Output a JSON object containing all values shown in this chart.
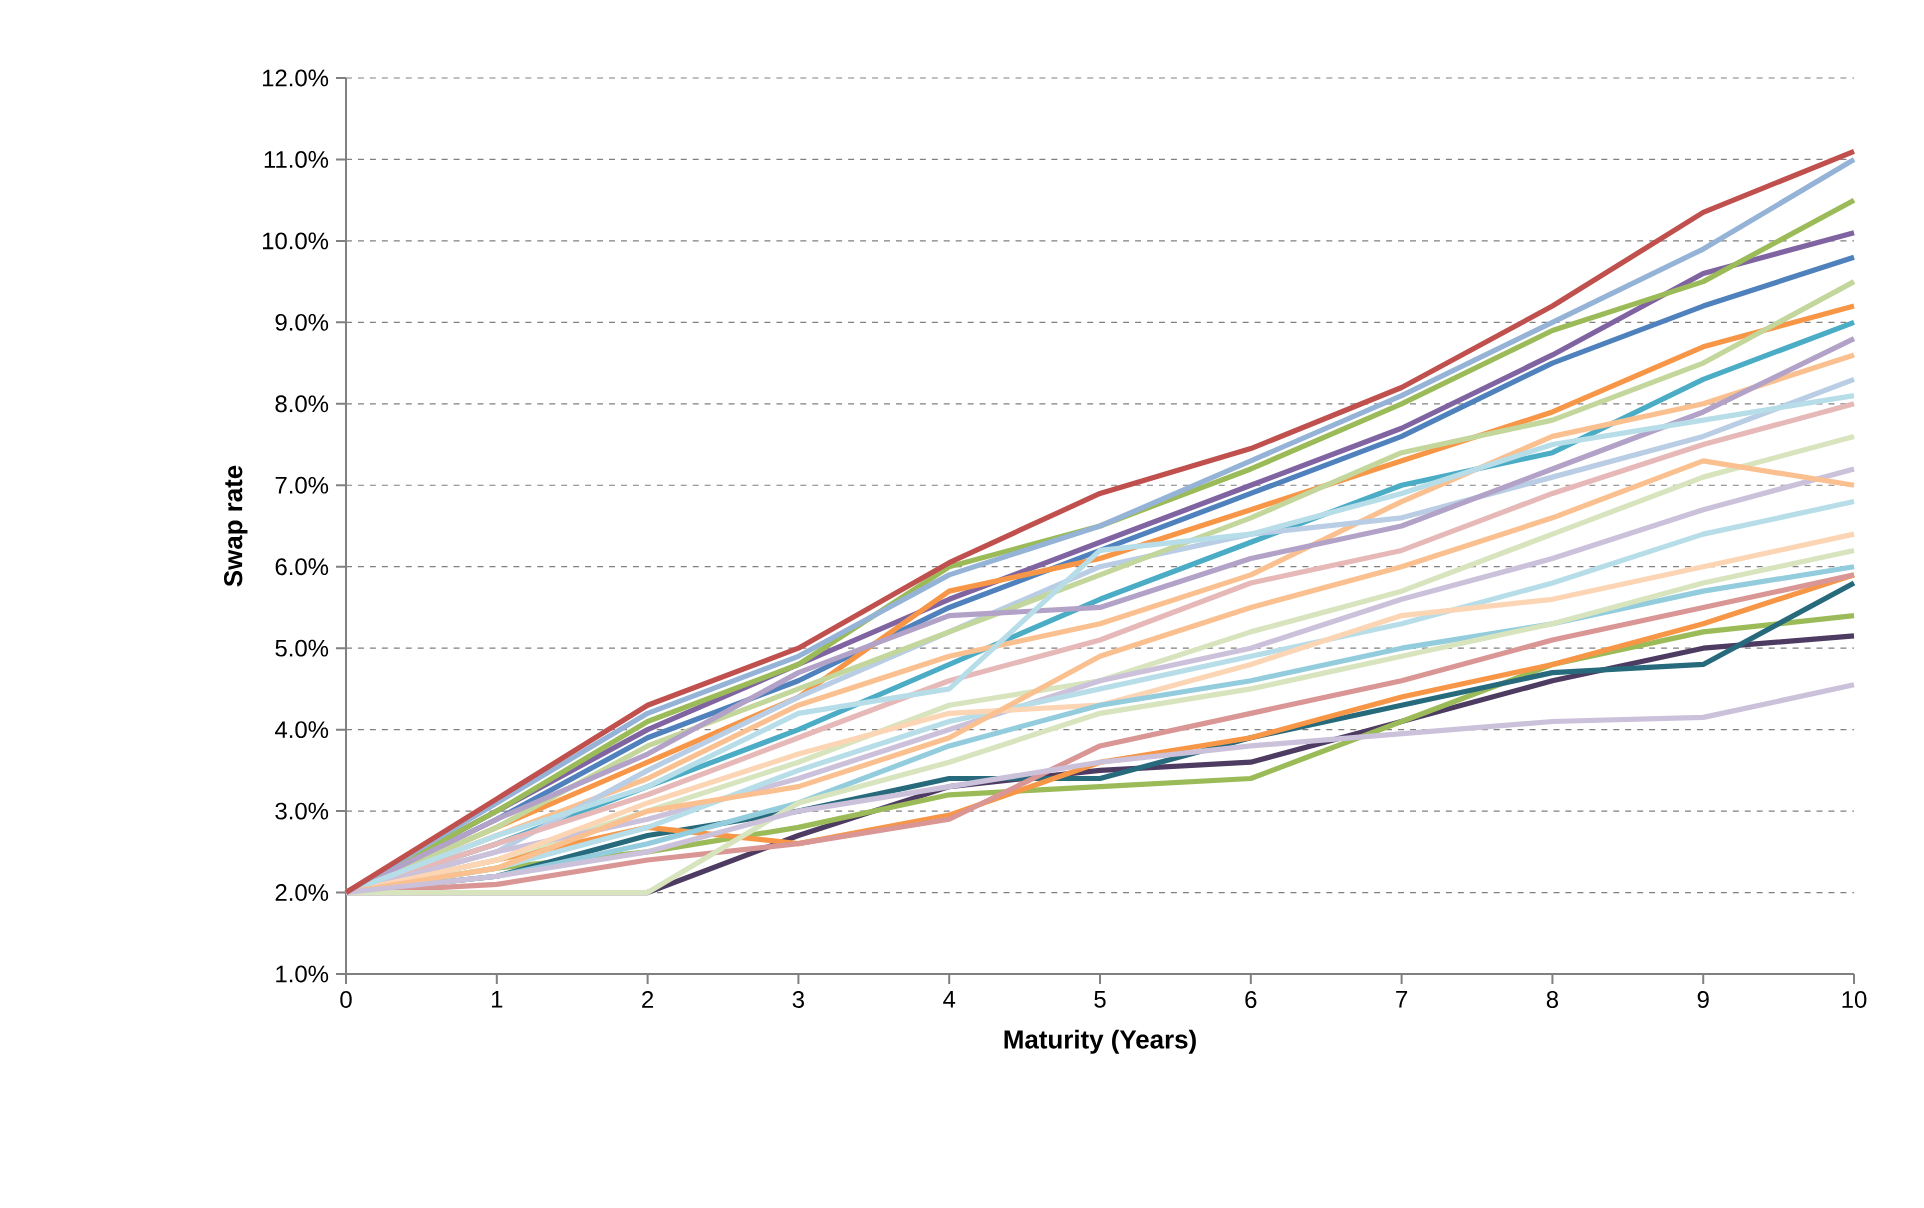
{
  "chart_data": {
    "type": "line",
    "xlabel": "Maturity (Years)",
    "ylabel": "Swap rate",
    "grid": "y",
    "marker": "none",
    "line_style": "solid",
    "x": [
      0,
      1,
      2,
      3,
      4,
      5,
      6,
      7,
      8,
      9,
      10
    ],
    "xlim": [
      0,
      10
    ],
    "xticks": [
      0,
      1,
      2,
      3,
      4,
      5,
      6,
      7,
      8,
      9,
      10
    ],
    "ylim": [
      1,
      12
    ],
    "yticks": [
      {
        "value": 1,
        "label": "1.0%"
      },
      {
        "value": 2,
        "label": "2.0%"
      },
      {
        "value": 3,
        "label": "3.0%"
      },
      {
        "value": 4,
        "label": "4.0%"
      },
      {
        "value": 5,
        "label": "5.0%"
      },
      {
        "value": 6,
        "label": "6.0%"
      },
      {
        "value": 7,
        "label": "7.0%"
      },
      {
        "value": 8,
        "label": "8.0%"
      },
      {
        "value": 9,
        "label": "9.0%"
      },
      {
        "value": 10,
        "label": "10.0%"
      },
      {
        "value": 11,
        "label": "11.0%"
      },
      {
        "value": 12,
        "label": "12.0%"
      }
    ],
    "series": [
      {
        "color": "#4d3b62",
        "values": [
          2,
          null,
          2.0,
          2.7,
          3.3,
          3.5,
          3.6,
          4.1,
          4.6,
          5.0,
          5.15
        ]
      },
      {
        "color": "#9bbb59",
        "values": [
          2,
          2.3,
          2.5,
          2.8,
          3.2,
          3.3,
          3.4,
          4.1,
          4.8,
          5.2,
          5.4
        ]
      },
      {
        "color": "#276a7c",
        "values": [
          2,
          2.2,
          2.7,
          3.0,
          3.4,
          3.4,
          3.9,
          4.3,
          4.7,
          4.8,
          5.8
        ]
      },
      {
        "color": "#f79646",
        "values": [
          2,
          2.4,
          2.8,
          2.6,
          2.95,
          3.6,
          3.9,
          4.4,
          4.8,
          5.3,
          5.9
        ]
      },
      {
        "color": "#8064a2",
        "values": [
          2,
          3.0,
          4.0,
          4.8,
          5.6,
          6.3,
          7.0,
          7.7,
          8.6,
          9.6,
          10.1
        ]
      },
      {
        "color": "#4f81bd",
        "values": [
          2,
          2.9,
          3.9,
          4.6,
          5.5,
          6.2,
          6.9,
          7.6,
          8.5,
          9.2,
          9.8
        ]
      },
      {
        "color": "#9bbb59",
        "values": [
          2,
          3.0,
          4.1,
          4.8,
          6.0,
          6.5,
          7.2,
          8.0,
          8.9,
          9.5,
          10.5
        ]
      },
      {
        "color": "#f79646",
        "values": [
          2,
          2.8,
          3.6,
          4.4,
          5.7,
          6.1,
          6.7,
          7.3,
          7.9,
          8.7,
          9.2
        ]
      },
      {
        "color": "#4bacc6",
        "values": [
          2,
          2.6,
          3.3,
          4.0,
          4.8,
          5.6,
          6.3,
          7.0,
          7.4,
          8.3,
          9.0
        ]
      },
      {
        "color": "#fac090",
        "values": [
          2,
          2.7,
          3.4,
          4.3,
          4.9,
          5.3,
          5.9,
          6.8,
          7.6,
          8.0,
          8.6
        ]
      },
      {
        "color": "#b9cde5",
        "values": [
          2,
          2.5,
          3.5,
          4.4,
          5.2,
          6.0,
          6.4,
          6.6,
          7.1,
          7.6,
          8.3
        ]
      },
      {
        "color": "#e6b9b8",
        "values": [
          2,
          2.6,
          3.2,
          3.9,
          4.6,
          5.1,
          5.8,
          6.2,
          6.9,
          7.5,
          8.0
        ]
      },
      {
        "color": "#d7e4bd",
        "values": [
          2,
          2.4,
          3.0,
          3.6,
          4.3,
          4.6,
          5.2,
          5.7,
          6.4,
          7.1,
          7.6
        ]
      },
      {
        "color": "#ccc1da",
        "values": [
          2,
          2.5,
          2.9,
          3.4,
          4.0,
          4.6,
          5.0,
          5.6,
          6.1,
          6.7,
          7.2
        ]
      },
      {
        "color": "#b7dee8",
        "values": [
          2,
          2.3,
          2.8,
          3.5,
          4.1,
          4.5,
          4.9,
          5.3,
          5.8,
          6.4,
          6.8
        ]
      },
      {
        "color": "#fcd5b5",
        "values": [
          2,
          2.4,
          3.1,
          3.7,
          4.2,
          4.3,
          4.8,
          5.4,
          5.6,
          6.0,
          6.4
        ]
      },
      {
        "color": "#93cddd",
        "values": [
          2,
          2.2,
          2.6,
          3.1,
          3.8,
          4.3,
          4.6,
          5.0,
          5.3,
          5.7,
          6.0
        ]
      },
      {
        "color": "#d99694",
        "values": [
          2,
          2.1,
          2.4,
          2.6,
          2.9,
          3.8,
          4.2,
          4.6,
          5.1,
          5.5,
          5.9
        ]
      },
      {
        "color": "#c3d69b",
        "values": [
          2,
          2.8,
          3.8,
          4.5,
          5.2,
          5.9,
          6.6,
          7.4,
          7.8,
          8.5,
          9.5
        ]
      },
      {
        "color": "#b3a2c7",
        "values": [
          2,
          2.9,
          3.7,
          4.7,
          5.4,
          5.5,
          6.1,
          6.5,
          7.2,
          7.9,
          8.8
        ]
      },
      {
        "color": "#b7dee8",
        "values": [
          2,
          2.7,
          3.3,
          4.2,
          4.5,
          6.2,
          6.4,
          6.9,
          7.5,
          7.8,
          8.1
        ]
      },
      {
        "color": "#fac090",
        "values": [
          2,
          2.3,
          3.0,
          3.3,
          3.9,
          4.9,
          5.5,
          6.0,
          6.6,
          7.3,
          7.0
        ]
      },
      {
        "color": "#d7e4bd",
        "values": [
          2,
          2.0,
          2.0,
          3.1,
          3.6,
          4.2,
          4.5,
          4.9,
          5.3,
          5.8,
          6.2
        ]
      },
      {
        "color": "#ccc1da",
        "values": [
          2,
          2.2,
          2.5,
          3.0,
          3.3,
          3.6,
          3.8,
          3.95,
          4.1,
          4.15,
          4.55
        ]
      },
      {
        "color": "#95b3d7",
        "values": [
          2,
          3.1,
          4.2,
          4.9,
          5.9,
          6.5,
          7.3,
          8.1,
          9.0,
          9.9,
          11.0
        ]
      },
      {
        "color": "#c0504d",
        "values": [
          2,
          3.15,
          4.3,
          5.0,
          6.05,
          6.9,
          7.45,
          8.2,
          9.2,
          10.35,
          11.1
        ]
      }
    ]
  }
}
